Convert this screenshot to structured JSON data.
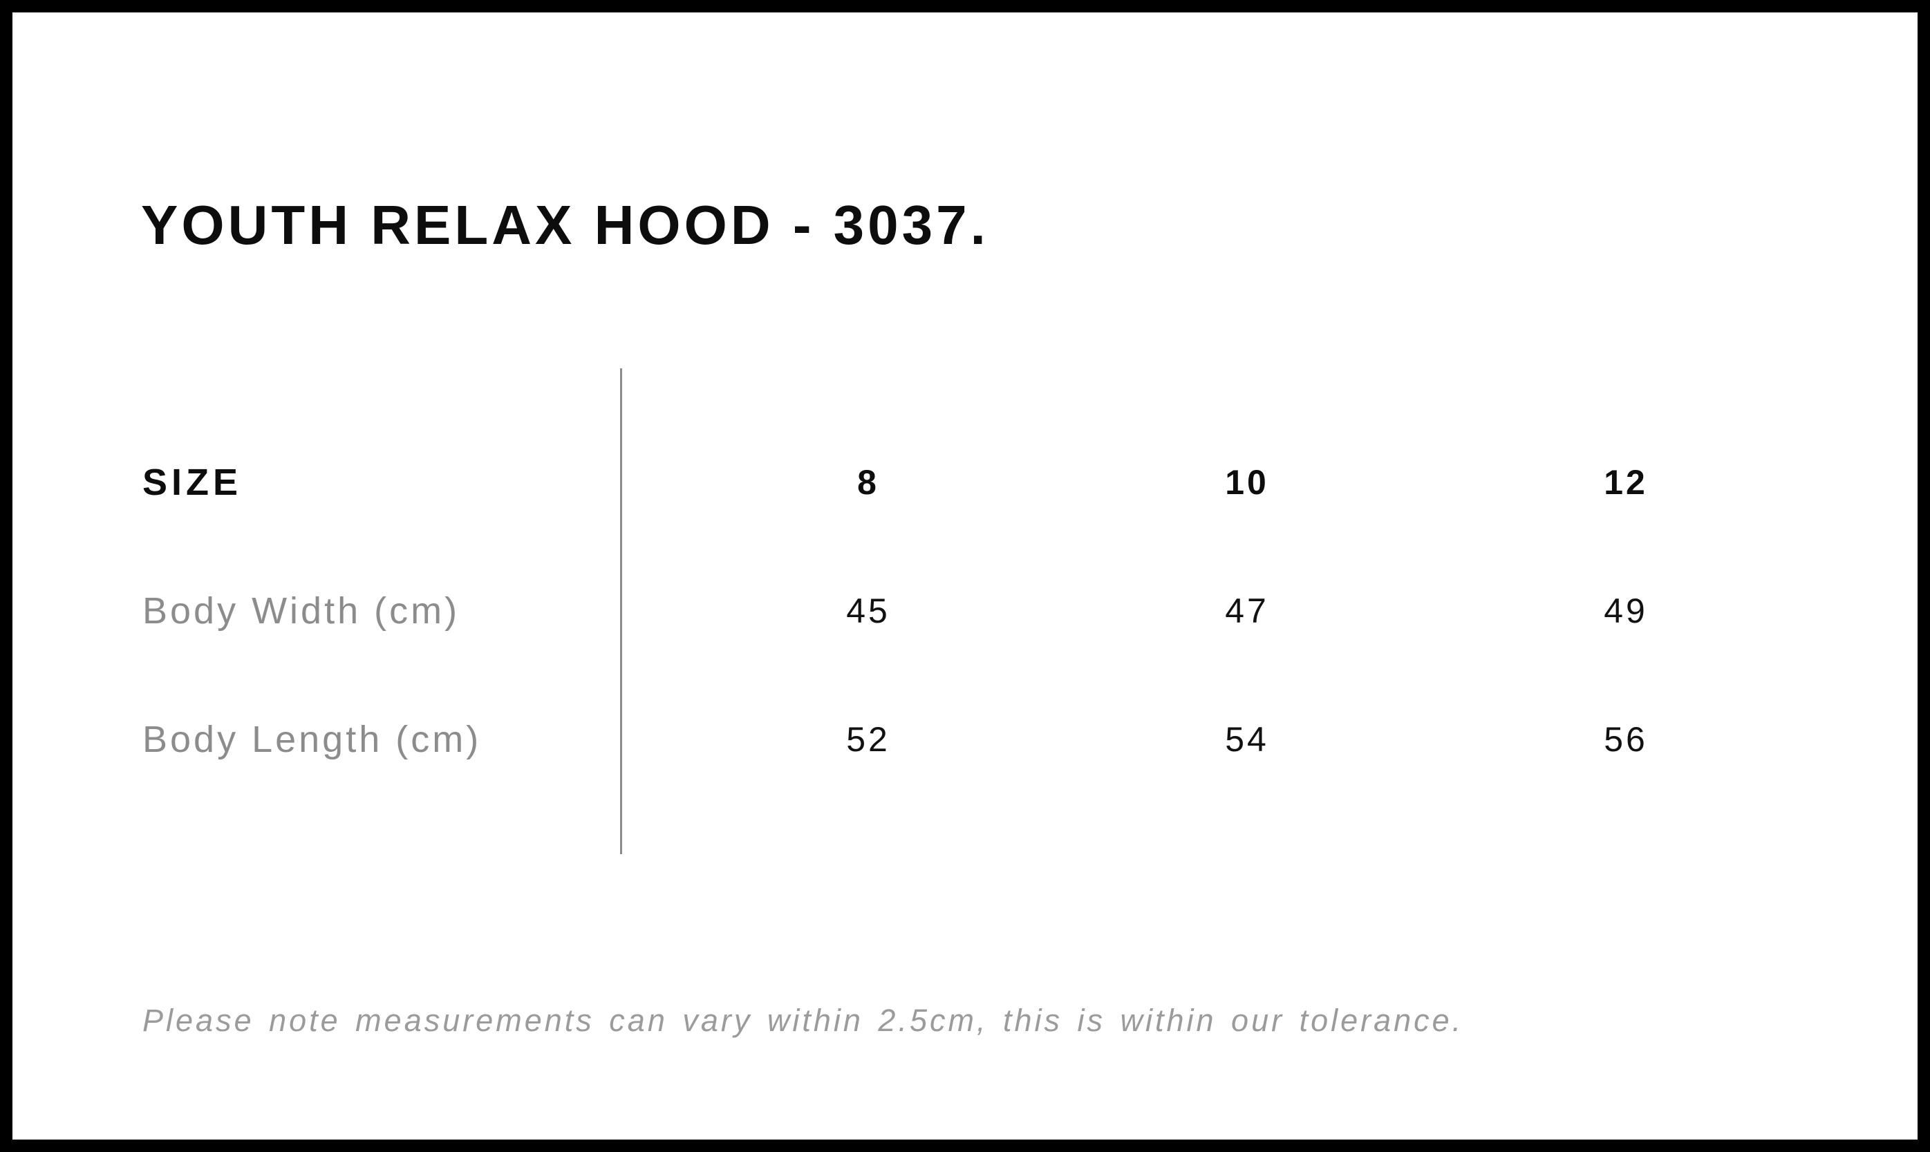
{
  "title": "YOUTH RELAX HOOD - 3037.",
  "size_chart": {
    "header": {
      "label": "SIZE",
      "sizes": [
        "8",
        "10",
        "12"
      ]
    },
    "rows": [
      {
        "label": "Body Width (cm)",
        "values": [
          "45",
          "47",
          "49"
        ]
      },
      {
        "label": "Body Length (cm)",
        "values": [
          "52",
          "54",
          "56"
        ]
      }
    ]
  },
  "note": "Please note measurements can vary within 2.5cm, this is within our tolerance.",
  "colors": {
    "text": "#0d0d0d",
    "value_text": "#111111",
    "muted_label": "#8c8c8c",
    "note_text": "#9b9b9b",
    "divider": "#8c8c8c",
    "frame_border": "#000000",
    "background": "#ffffff"
  },
  "chart_data": {
    "type": "table",
    "title": "YOUTH RELAX HOOD - 3037.",
    "columns": [
      "SIZE",
      "8",
      "10",
      "12"
    ],
    "rows": [
      [
        "Body Width (cm)",
        45,
        47,
        49
      ],
      [
        "Body Length (cm)",
        52,
        54,
        56
      ]
    ],
    "units": "cm",
    "note": "Please note measurements can vary within 2.5cm, this is within our tolerance.",
    "layout_hints": {
      "label_column_separator": "vertical gray line",
      "frame": "black border around sheet"
    }
  }
}
